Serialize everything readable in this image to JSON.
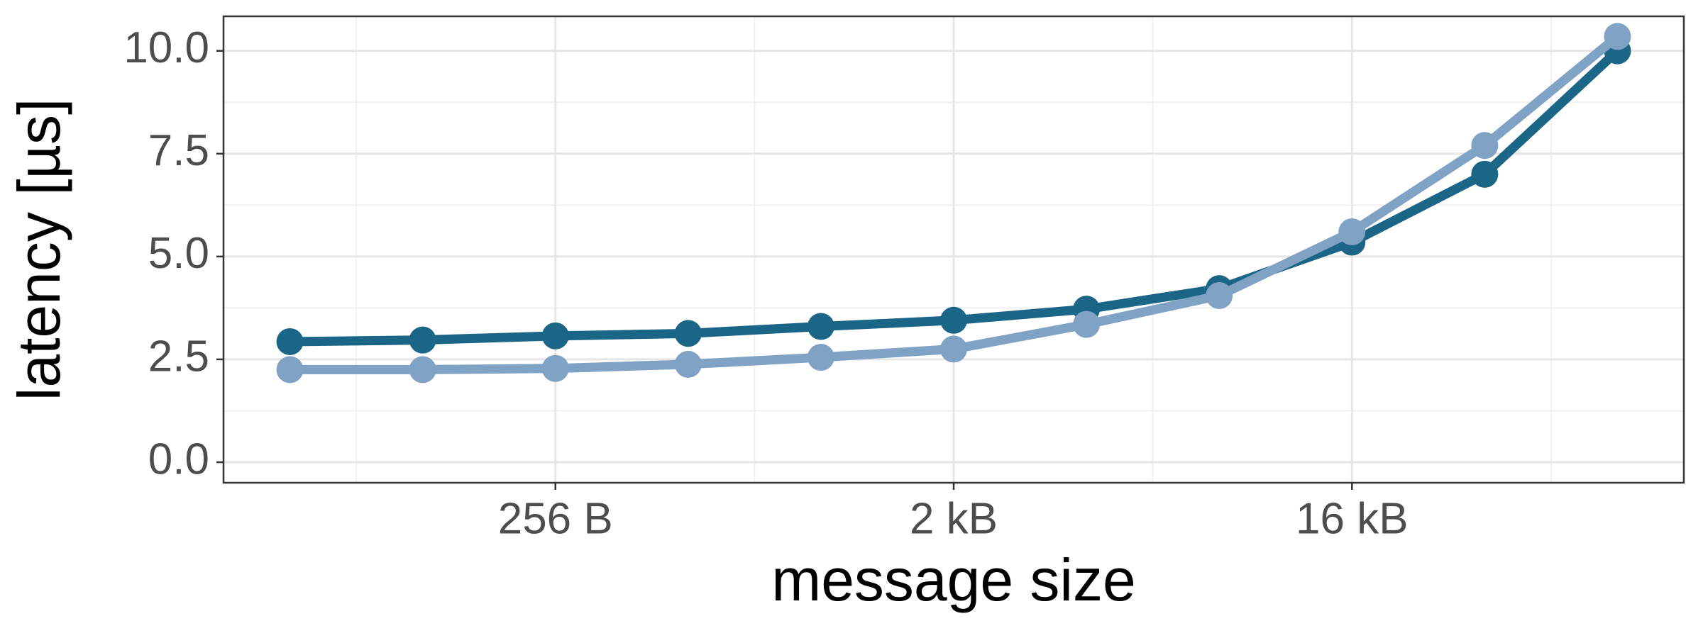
{
  "chart_data": {
    "type": "line",
    "x_label": "message size",
    "y_label": "latency [µs]",
    "x": [
      64,
      128,
      256,
      512,
      1024,
      2048,
      4096,
      8192,
      16384,
      32768,
      65536
    ],
    "series": [
      {
        "color": "#1b6586",
        "values": [
          2.93,
          2.97,
          3.07,
          3.13,
          3.3,
          3.45,
          3.72,
          4.22,
          5.35,
          7.0,
          10.0
        ]
      },
      {
        "color": "#80a3c5",
        "values": [
          2.25,
          2.25,
          2.28,
          2.38,
          2.55,
          2.75,
          3.35,
          4.05,
          5.6,
          7.7,
          10.35
        ]
      }
    ],
    "xscale": "log",
    "xlim": [
      45.25,
      92682
    ],
    "xticks": [
      {
        "value": 256,
        "label": "256 B"
      },
      {
        "value": 2048,
        "label": "2 kB"
      },
      {
        "value": 16384,
        "label": "16 kB"
      }
    ],
    "ylim": [
      -0.5,
      10.84
    ],
    "yticks": [
      {
        "value": 0,
        "label": "0.0"
      },
      {
        "value": 2.5,
        "label": "2.5"
      },
      {
        "value": 5,
        "label": "5.0"
      },
      {
        "value": 7.5,
        "label": "7.5"
      },
      {
        "value": 10,
        "label": "10.0"
      }
    ],
    "grid": true
  }
}
